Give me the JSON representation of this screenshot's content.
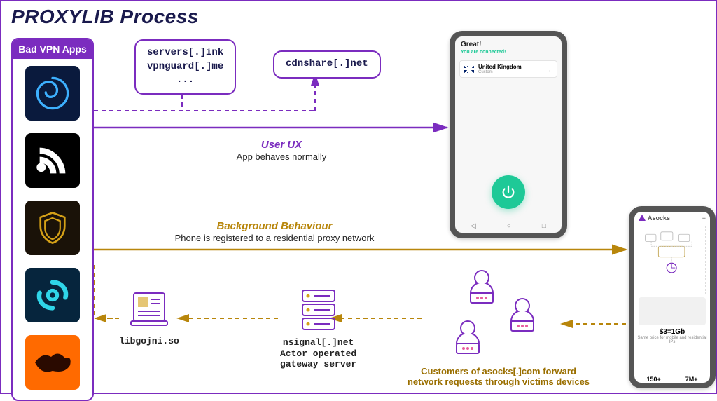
{
  "title": "PROXYLIB Process",
  "colors": {
    "purple": "#7b2cbf",
    "gold": "#b8860b",
    "green": "#1ec997",
    "navy": "#1a1a4d",
    "app_bg": [
      "#0a1a3d",
      "#000000",
      "#1a1208",
      "#06253d",
      "#ff6a00"
    ]
  },
  "apps_panel": {
    "header": "Bad VPN Apps",
    "icons": [
      "spiral",
      "rss-p",
      "shield",
      "swirl",
      "fox"
    ]
  },
  "domain_boxes": {
    "servers": "servers[.]ink\nvpnguard[.]me\n...",
    "cdn": "cdnshare[.]net"
  },
  "flows": {
    "user_ux": {
      "title": "User UX",
      "subtitle": "App behaves normally"
    },
    "background": {
      "title": "Background Behaviour",
      "subtitle": "Phone is registered to a residential proxy network"
    }
  },
  "phone_user": {
    "status": "Great!",
    "sub": "You are connected!",
    "country": "United Kingdom",
    "country_sub": "Custom"
  },
  "phone_asocks": {
    "brand": "Asocks",
    "price": "$3=1Gb",
    "price_sub": "Same price for mobile and residential IPs",
    "stat_left": "150+",
    "stat_right": "7M+"
  },
  "bottom_nodes": {
    "lib": {
      "label": "libgojni.so"
    },
    "gateway": {
      "line1": "nsignal[.]net",
      "line2": "Actor operated",
      "line3": "gateway server"
    }
  },
  "customers_label": "Customers of asocks[.]com forward\nnetwork requests through victims devices"
}
